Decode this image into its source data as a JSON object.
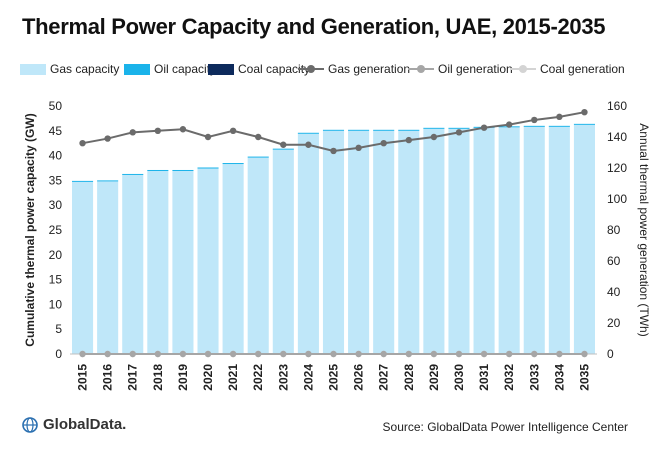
{
  "chart_data": {
    "type": "bar+line",
    "title": "Thermal Power Capacity and Generation, UAE, 2015-2035",
    "categories": [
      "2015",
      "2016",
      "2017",
      "2018",
      "2019",
      "2020",
      "2021",
      "2022",
      "2023",
      "2024",
      "2025",
      "2026",
      "2027",
      "2028",
      "2029",
      "2030",
      "2031",
      "2032",
      "2033",
      "2034",
      "2035"
    ],
    "left_axis": {
      "label": "Cumulative thermal power capacity (GW)",
      "min": 0,
      "max": 50,
      "ticks": [
        0,
        5,
        10,
        15,
        20,
        25,
        30,
        35,
        40,
        45,
        50
      ]
    },
    "right_axis": {
      "label": "Annual thermal power generation (TWh)",
      "min": 0,
      "max": 160,
      "ticks": [
        0,
        20,
        40,
        60,
        80,
        100,
        120,
        140,
        160
      ]
    },
    "bar_series": [
      {
        "name": "Gas capacity",
        "color": "#bfe7f9",
        "values": [
          34.7,
          34.8,
          36.1,
          36.9,
          36.9,
          37.4,
          38.3,
          39.6,
          41.2,
          44.4,
          45.0,
          45.0,
          45.0,
          45.0,
          45.4,
          45.4,
          45.6,
          45.7,
          45.8,
          45.8,
          46.2
        ]
      },
      {
        "name": "Oil capacity",
        "color": "#1ab3ea",
        "values": [
          0.2,
          0.2,
          0.2,
          0.2,
          0.2,
          0.2,
          0.2,
          0.2,
          0.2,
          0.2,
          0.2,
          0.2,
          0.2,
          0.2,
          0.2,
          0.2,
          0.2,
          0.2,
          0.2,
          0.2,
          0.2
        ]
      },
      {
        "name": "Coal capacity",
        "color": "#0d2a5c",
        "values": [
          0,
          0,
          0,
          0,
          0,
          0,
          0,
          0,
          0,
          0,
          0,
          0,
          0,
          0,
          0,
          0,
          0,
          0,
          0,
          0,
          0
        ]
      }
    ],
    "line_series": [
      {
        "name": "Gas generation",
        "color": "#6b6b6b",
        "values": [
          136,
          139,
          143,
          144,
          145,
          140,
          144,
          140,
          135,
          135,
          131,
          133,
          136,
          138,
          140,
          143,
          146,
          148,
          151,
          153,
          156
        ]
      },
      {
        "name": "Oil generation",
        "color": "#a6a6a6",
        "values": [
          0,
          0,
          0,
          0,
          0,
          0,
          0,
          0,
          0,
          0,
          0,
          0,
          0,
          0,
          0,
          0,
          0,
          0,
          0,
          0,
          0
        ]
      },
      {
        "name": "Coal generation",
        "color": "#d4d4d4",
        "values": [
          0,
          0,
          0,
          0,
          0,
          0,
          0,
          0,
          0,
          0,
          0,
          0,
          0,
          0,
          0,
          0,
          0,
          0,
          0,
          0,
          0
        ]
      }
    ],
    "legend_position": "top"
  },
  "logo_text": "GlobalData.",
  "source_text": "Source: GlobalData Power Intelligence Center"
}
